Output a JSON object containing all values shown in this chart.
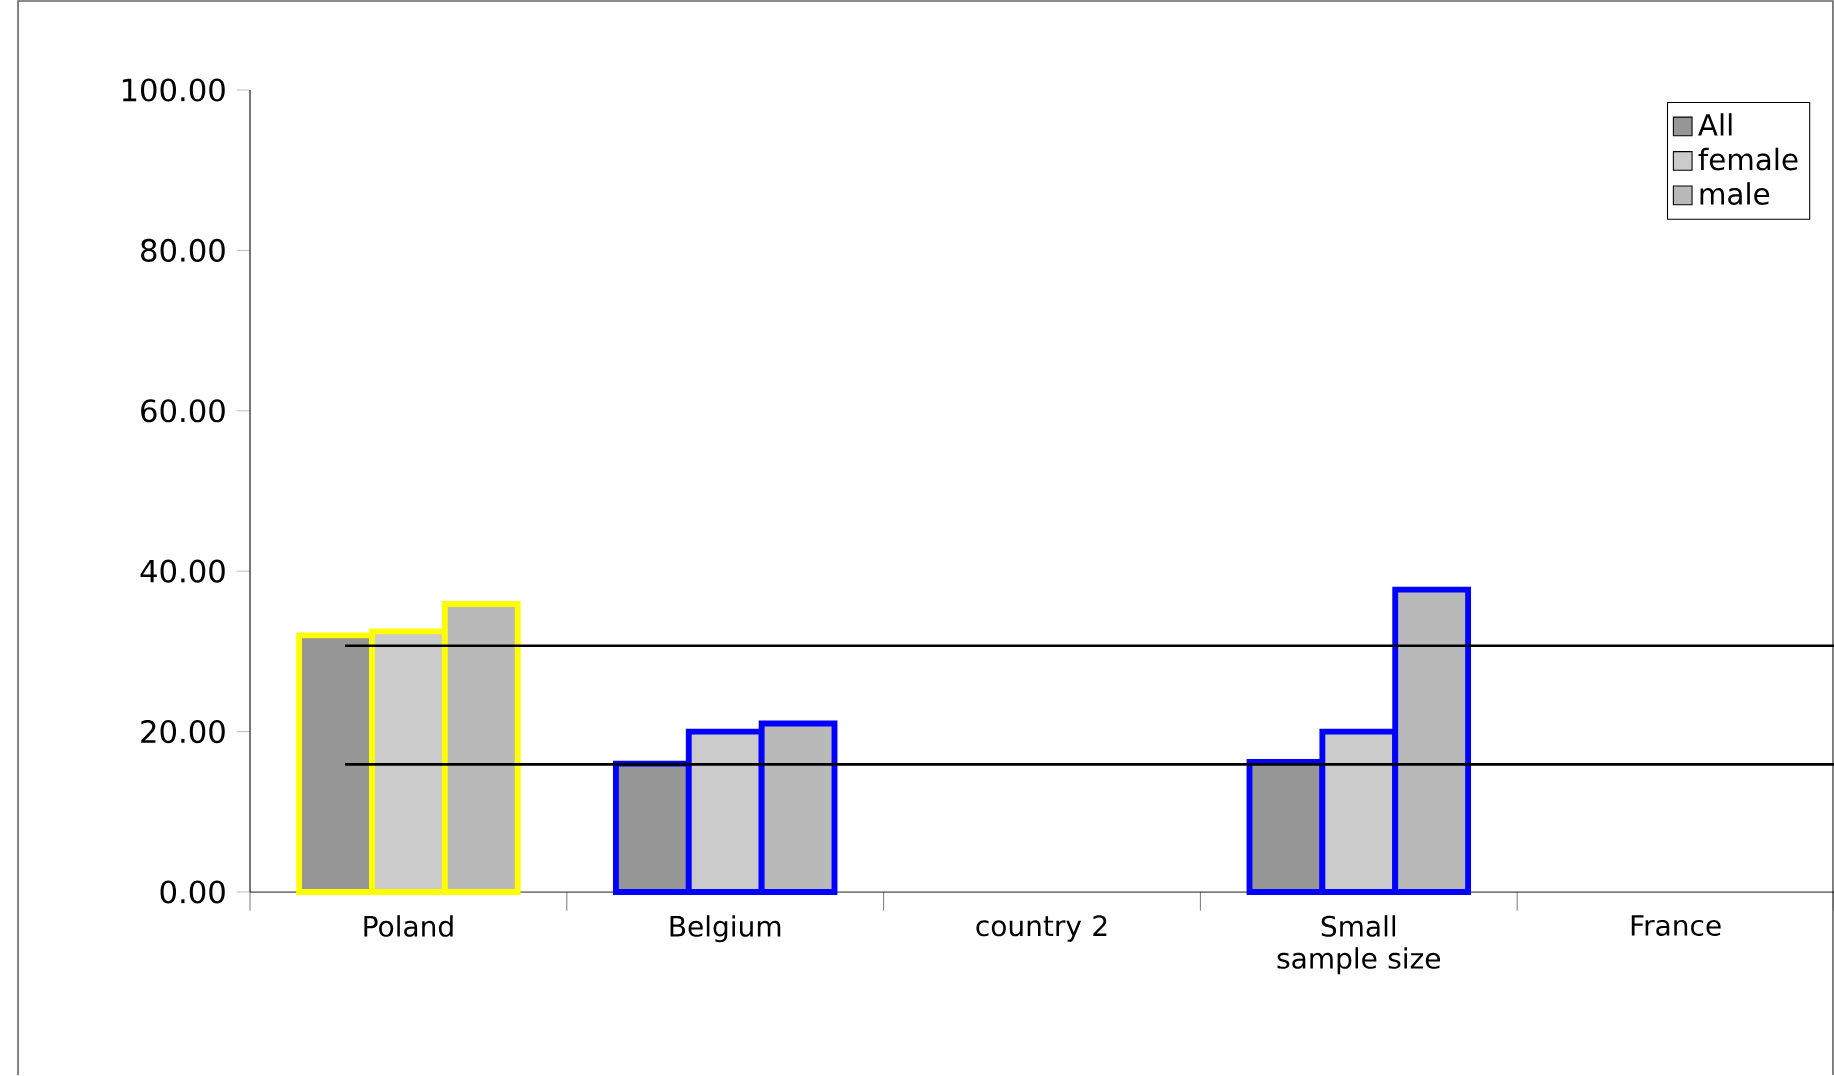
{
  "chart_data": {
    "type": "bar",
    "categories": [
      "Poland",
      "Belgium",
      "country 2",
      "Small sample size",
      "France"
    ],
    "series": [
      {
        "name": "All",
        "color": "#969696",
        "colors": [
          "#ffff00",
          "#0000ff",
          null,
          "#0000ff",
          null
        ],
        "values": [
          32,
          16,
          null,
          16.2,
          null
        ]
      },
      {
        "name": "female",
        "color": "#cbcbcb",
        "colors": [
          "#ffff00",
          "#0000ff",
          null,
          "#0000ff",
          null
        ],
        "values": [
          32.5,
          20,
          null,
          20,
          null
        ]
      },
      {
        "name": "male",
        "color": "#b9b9b9",
        "colors": [
          "#ffff00",
          "#0000ff",
          null,
          "#0000ff",
          null
        ],
        "values": [
          35.9,
          21,
          null,
          37.7,
          null
        ]
      }
    ],
    "ylim": [
      0,
      100
    ],
    "yticks": [
      {
        "value": 0,
        "label": "0.00"
      },
      {
        "value": 20,
        "label": "20.00"
      },
      {
        "value": 40,
        "label": "40.00"
      },
      {
        "value": 60,
        "label": "60.00"
      },
      {
        "value": 80,
        "label": "80.00"
      },
      {
        "value": 100,
        "label": "100.00"
      }
    ],
    "ref_lines": [
      {
        "axis": "y",
        "value": 30.7,
        "color": "#000000"
      },
      {
        "axis": "y",
        "value": 15.9,
        "color": "#000000"
      }
    ],
    "grid": false,
    "legend": "top right"
  }
}
